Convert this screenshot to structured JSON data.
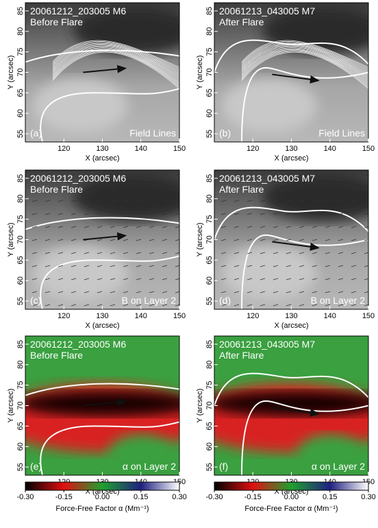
{
  "panels": [
    {
      "label": "(a)",
      "title": [
        "20061212_203005 M6",
        "Before Flare"
      ],
      "caption": "Field Lines",
      "xlabel": "X (arcsec)",
      "ylabel": "Y (arcsec)",
      "xlim": [
        110,
        150
      ],
      "ylim": [
        53,
        87
      ],
      "xticks": [
        120,
        130,
        140,
        150
      ],
      "yticks": [
        55,
        60,
        65,
        70,
        75,
        80,
        85
      ]
    },
    {
      "label": "(b)",
      "title": [
        "20061213_043005 M7",
        "After Flare"
      ],
      "caption": "Field Lines",
      "xlabel": "X (arcsec)",
      "ylabel": "Y (arcsec)",
      "xlim": [
        110,
        150
      ],
      "ylim": [
        53,
        87
      ],
      "xticks": [
        120,
        130,
        140,
        150
      ],
      "yticks": [
        55,
        60,
        65,
        70,
        75,
        80,
        85
      ]
    },
    {
      "label": "(c)",
      "title": [
        "20061212_203005 M6",
        "Before Flare"
      ],
      "caption": "B on Layer 2",
      "xlabel": "X (arcsec)",
      "ylabel": "Y (arcsec)",
      "xlim": [
        110,
        150
      ],
      "ylim": [
        53,
        87
      ],
      "xticks": [
        120,
        130,
        140,
        150
      ],
      "yticks": [
        55,
        60,
        65,
        70,
        75,
        80,
        85
      ]
    },
    {
      "label": "(d)",
      "title": [
        "20061213_043005 M7",
        "After Flare"
      ],
      "caption": "B on Layer 2",
      "xlabel": "X (arcsec)",
      "ylabel": "Y (arcsec)",
      "xlim": [
        110,
        150
      ],
      "ylim": [
        53,
        87
      ],
      "xticks": [
        120,
        130,
        140,
        150
      ],
      "yticks": [
        55,
        60,
        65,
        70,
        75,
        80,
        85
      ]
    },
    {
      "label": "(e)",
      "title": [
        "20061212_203005 M6",
        "Before Flare"
      ],
      "caption": "α on Layer 2",
      "xlabel": "X (arcsec)",
      "ylabel": "Y (arcsec)",
      "xlim": [
        110,
        150
      ],
      "ylim": [
        53,
        87
      ],
      "xticks": [
        120,
        130,
        140,
        150
      ],
      "yticks": [
        55,
        60,
        65,
        70,
        75,
        80,
        85
      ]
    },
    {
      "label": "(f)",
      "title": [
        "20061213_043005 M7",
        "After Flare"
      ],
      "caption": "α on Layer 2",
      "xlabel": "X (arcsec)",
      "ylabel": "Y (arcsec)",
      "xlim": [
        110,
        150
      ],
      "ylim": [
        53,
        87
      ],
      "xticks": [
        120,
        130,
        140,
        150
      ],
      "yticks": [
        55,
        60,
        65,
        70,
        75,
        80,
        85
      ]
    }
  ],
  "colorbars": [
    {
      "lim": [
        -0.3,
        0.3
      ],
      "ticks": [
        {
          "value": -0.3,
          "label": "-0.30"
        },
        {
          "value": -0.15,
          "label": "-0.15"
        },
        {
          "value": 0,
          "label": "0.00"
        },
        {
          "value": 0.15,
          "label": "0.15"
        },
        {
          "value": 0.3,
          "label": "0.30"
        }
      ],
      "label": "Force-Free Factor α (Mm⁻¹)"
    },
    {
      "lim": [
        -0.3,
        0.3
      ],
      "ticks": [
        {
          "value": -0.3,
          "label": "-0.30"
        },
        {
          "value": -0.15,
          "label": "-0.15"
        },
        {
          "value": 0,
          "label": "0.00"
        },
        {
          "value": 0.15,
          "label": "0.15"
        },
        {
          "value": 0.3,
          "label": "0.30"
        }
      ],
      "label": "Force-Free Factor α (Mm⁻¹)"
    }
  ]
}
